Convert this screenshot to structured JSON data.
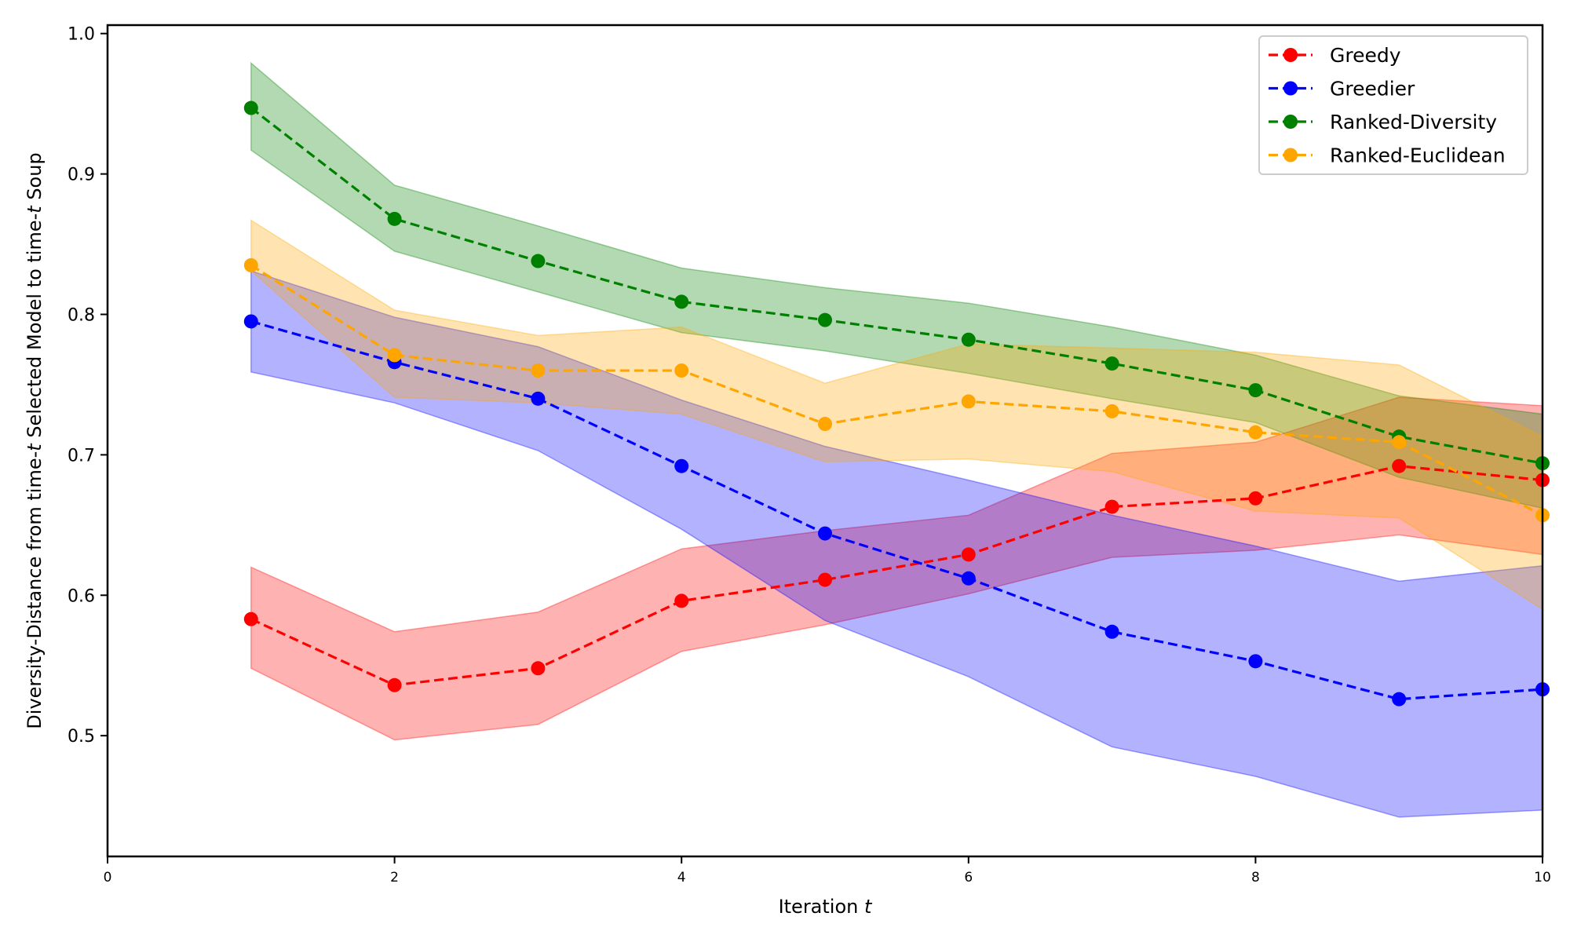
{
  "chart_data": {
    "type": "line",
    "title": "",
    "xlabel": "Iteration",
    "xlabel_italic": "t",
    "ylabel_parts": [
      "Diversity-Distance from time-",
      "t",
      " Selected Model to time-",
      "t",
      " Soup"
    ],
    "ylabel": "Diversity-Distance from time-t Selected Model to time-t Soup",
    "xlim": [
      0,
      10
    ],
    "ylim": [
      0.414,
      1.006
    ],
    "xticks": [
      0,
      2,
      4,
      6,
      8,
      10
    ],
    "xtick_labels": [
      "0",
      "2",
      "4",
      "6",
      "8",
      "10"
    ],
    "yticks": [
      0.5,
      0.6,
      0.7,
      0.8,
      0.9,
      1.0
    ],
    "ytick_labels": [
      "0.5",
      "0.6",
      "0.7",
      "0.8",
      "0.9",
      "1.0"
    ],
    "grid": false,
    "legend_position": "top-right",
    "x": [
      1,
      2,
      3,
      4,
      5,
      6,
      7,
      8,
      9,
      10
    ],
    "series": [
      {
        "name": "Greedy",
        "color": "#ff0000",
        "fill_color": "#ff0000",
        "values": [
          0.583,
          0.536,
          0.548,
          0.596,
          0.611,
          0.629,
          0.663,
          0.669,
          0.692,
          0.682
        ],
        "upper": [
          0.62,
          0.574,
          0.588,
          0.633,
          0.646,
          0.657,
          0.701,
          0.709,
          0.741,
          0.735
        ],
        "lower": [
          0.548,
          0.497,
          0.508,
          0.56,
          0.579,
          0.601,
          0.627,
          0.632,
          0.643,
          0.629
        ]
      },
      {
        "name": "Greedier",
        "color": "#0000ff",
        "fill_color": "#0000ff",
        "values": [
          0.795,
          0.766,
          0.74,
          0.692,
          0.644,
          0.612,
          0.574,
          0.553,
          0.526,
          0.533
        ],
        "upper": [
          0.831,
          0.798,
          0.777,
          0.739,
          0.706,
          0.682,
          0.657,
          0.635,
          0.61,
          0.621
        ],
        "lower": [
          0.759,
          0.737,
          0.703,
          0.647,
          0.582,
          0.542,
          0.492,
          0.471,
          0.442,
          0.447
        ]
      },
      {
        "name": "Ranked-Diversity",
        "color": "#008000",
        "fill_color": "#008000",
        "values": [
          0.947,
          0.868,
          0.838,
          0.809,
          0.796,
          0.782,
          0.765,
          0.746,
          0.713,
          0.694
        ],
        "upper": [
          0.979,
          0.892,
          0.863,
          0.833,
          0.819,
          0.808,
          0.791,
          0.771,
          0.742,
          0.729
        ],
        "lower": [
          0.917,
          0.845,
          0.816,
          0.787,
          0.774,
          0.758,
          0.74,
          0.723,
          0.684,
          0.662
        ]
      },
      {
        "name": "Ranked-Euclidean",
        "color": "#ffa500",
        "fill_color": "#ffa500",
        "values": [
          0.835,
          0.771,
          0.76,
          0.76,
          0.722,
          0.738,
          0.731,
          0.716,
          0.709,
          0.657
        ],
        "upper": [
          0.867,
          0.803,
          0.785,
          0.791,
          0.751,
          0.779,
          0.776,
          0.773,
          0.764,
          0.713
        ],
        "lower": [
          0.831,
          0.741,
          0.737,
          0.729,
          0.695,
          0.697,
          0.688,
          0.66,
          0.655,
          0.59
        ]
      }
    ]
  }
}
